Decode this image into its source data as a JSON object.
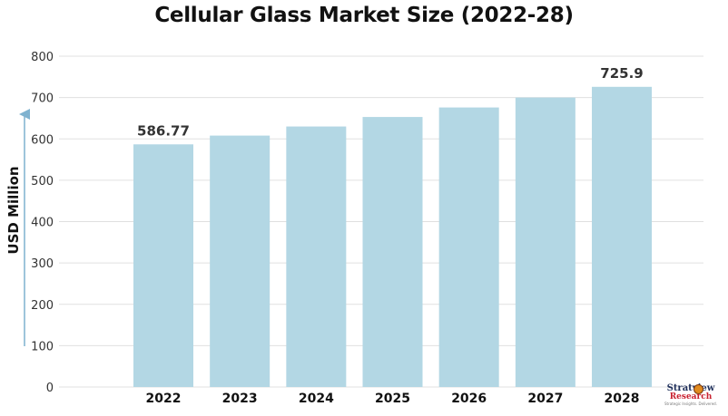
{
  "chart_data": {
    "type": "bar",
    "title": "Cellular Glass Market Size (2022-28)",
    "xlabel": "",
    "ylabel": "USD Million",
    "categories": [
      "2022",
      "2023",
      "2024",
      "2025",
      "2026",
      "2027",
      "2028"
    ],
    "values": [
      586.77,
      608,
      630,
      653,
      676,
      700,
      725.9
    ],
    "data_labels": [
      {
        "category": "2022",
        "text": "586.77"
      },
      {
        "category": "2028",
        "text": "725.9"
      }
    ],
    "ylim": [
      0,
      800
    ],
    "yticks": [
      0,
      100,
      200,
      300,
      400,
      500,
      600,
      700,
      800
    ],
    "grid": true,
    "legend": "none",
    "colors": {
      "bar": "#b3d7e4",
      "grid": "#e0e0e0",
      "tick_text": "#333333",
      "axis_arrow": "#7fb2cf"
    }
  },
  "watermark": {
    "line1": "Stratview",
    "line2": "Research",
    "line3": "Strategic Insights. Delivered.",
    "icon": "magnifier-icon"
  }
}
